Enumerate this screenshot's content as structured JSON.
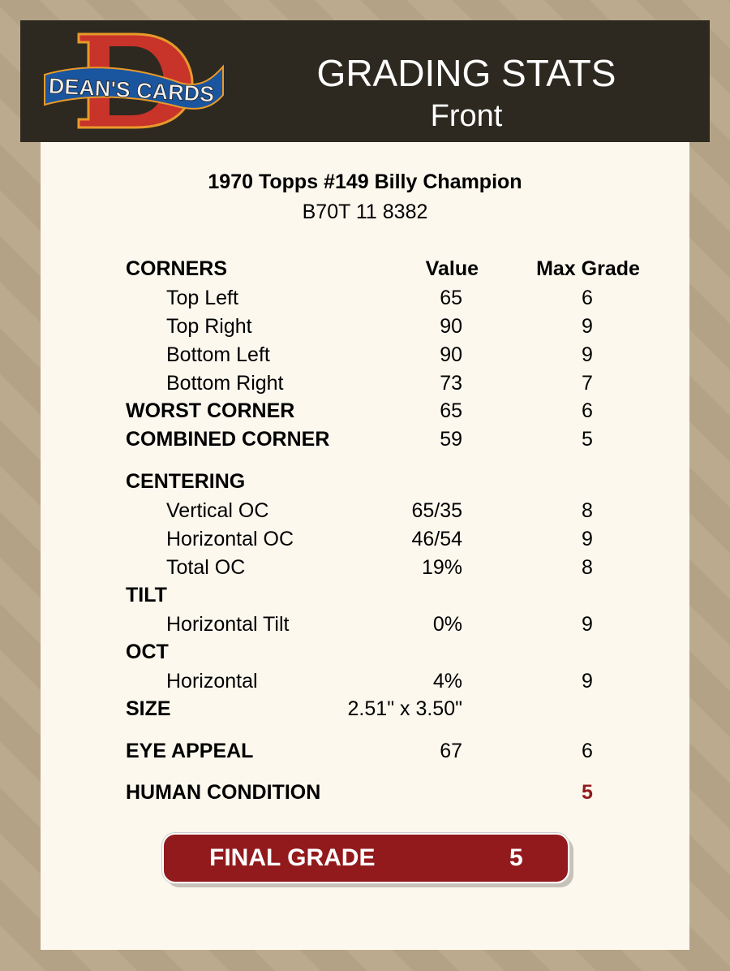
{
  "header": {
    "logo_text": "DEAN'S CARDS",
    "title": "GRADING STATS",
    "subtitle": "Front"
  },
  "card": {
    "name": "1970 Topps #149 Billy Champion",
    "id": "B70T 11 8382"
  },
  "columns": {
    "value": "Value",
    "max": "Max Grade"
  },
  "rows": [
    {
      "label": "CORNERS",
      "value": "",
      "max": "",
      "style": "bold",
      "top": 0
    },
    {
      "label": "Top Left",
      "value": "65",
      "max": "6",
      "style": "ind"
    },
    {
      "label": "Top Right",
      "value": "90",
      "max": "9",
      "style": "ind"
    },
    {
      "label": "Bottom Left",
      "value": "90",
      "max": "9",
      "style": "ind"
    },
    {
      "label": "Bottom Right",
      "value": "73",
      "max": "7",
      "style": "ind"
    },
    {
      "label": "WORST CORNER",
      "value": "65",
      "max": "6",
      "style": "bold"
    },
    {
      "label": "COMBINED CORNER",
      "value": "59",
      "max": "5",
      "style": "bold"
    },
    {
      "label": "CENTERING",
      "value": "",
      "max": "",
      "style": "bold"
    },
    {
      "label": "Vertical OC",
      "value": "65/35",
      "max": "8",
      "style": "ind"
    },
    {
      "label": "Horizontal OC",
      "value": "46/54",
      "max": "9",
      "style": "ind"
    },
    {
      "label": "Total OC",
      "value": "19%",
      "max": "8",
      "style": "ind"
    },
    {
      "label": "TILT",
      "value": "",
      "max": "",
      "style": "bold"
    },
    {
      "label": "Horizontal Tilt",
      "value": "0%",
      "max": "9",
      "style": "ind"
    },
    {
      "label": "OCT",
      "value": "",
      "max": "",
      "style": "bold"
    },
    {
      "label": "Horizontal",
      "value": "4%",
      "max": "9",
      "style": "ind"
    },
    {
      "label": "SIZE",
      "value": "2.51\" x 3.50\"",
      "max": "",
      "style": "bold"
    },
    {
      "label": "EYE APPEAL",
      "value": "67",
      "max": "6",
      "style": "bold"
    },
    {
      "label": "HUMAN CONDITION",
      "value": "",
      "max": "5",
      "style": "bold",
      "accent": true
    }
  ],
  "final_grade": {
    "label": "FINAL GRADE",
    "value": "5"
  },
  "colors": {
    "accent": "#921a1d",
    "header_bg": "#2e2920",
    "panel_bg": "#fcf8ee"
  }
}
